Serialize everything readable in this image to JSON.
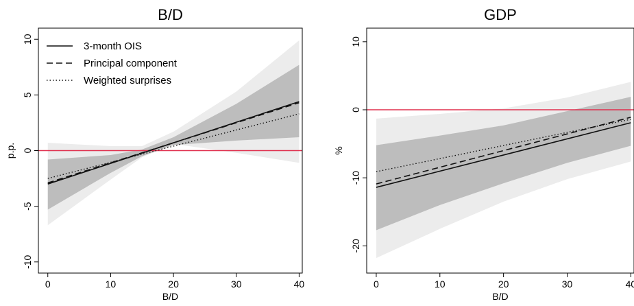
{
  "chart_data": [
    {
      "type": "line",
      "title": "B/D",
      "xlabel": "B/D",
      "ylabel": "p.p.",
      "xlim": [
        -1.5,
        40.5
      ],
      "ylim": [
        -11,
        11
      ],
      "xticks": [
        0,
        10,
        20,
        30,
        40
      ],
      "yticks": [
        -10,
        -5,
        0,
        5,
        10
      ],
      "ytick_labels": [
        "-10",
        "-5",
        "0",
        "5",
        "10"
      ],
      "reference_line": {
        "y": 0,
        "color": "#e0304e"
      },
      "band_colors": {
        "outer": "#ececec",
        "inner": "#bdbdbd"
      },
      "bands": {
        "outer": {
          "x": [
            0,
            10,
            15,
            20,
            30,
            40
          ],
          "lower": [
            -6.7,
            -2.6,
            -0.6,
            0.6,
            -0.2,
            -1.1
          ],
          "upper": [
            0.7,
            0.4,
            0.4,
            1.7,
            5.3,
            9.9
          ]
        },
        "inner": {
          "x": [
            0,
            10,
            15,
            20,
            30,
            40
          ],
          "lower": [
            -5.3,
            -2.0,
            -0.5,
            0.5,
            0.9,
            1.2
          ],
          "upper": [
            -0.8,
            -0.4,
            0.1,
            1.2,
            4.2,
            7.7
          ]
        }
      },
      "legend": {
        "position": "top-left",
        "entries": [
          "3-month OIS",
          "Principal component",
          "Weighted surprises"
        ]
      },
      "series": [
        {
          "name": "3-month OIS",
          "style": "solid",
          "x": [
            0,
            40
          ],
          "y": [
            -3.0,
            4.4
          ]
        },
        {
          "name": "Principal component",
          "style": "dashed",
          "x": [
            0,
            40
          ],
          "y": [
            -2.9,
            4.3
          ]
        },
        {
          "name": "Weighted surprises",
          "style": "dotted",
          "x": [
            0,
            40
          ],
          "y": [
            -2.5,
            3.3
          ]
        }
      ]
    },
    {
      "type": "line",
      "title": "GDP",
      "xlabel": "B/D",
      "ylabel": "%",
      "xlim": [
        -1.5,
        40.5
      ],
      "ylim": [
        -24,
        12
      ],
      "xticks": [
        0,
        10,
        20,
        30,
        40
      ],
      "yticks": [
        -20,
        -10,
        0,
        10
      ],
      "ytick_labels": [
        "-20",
        "-10",
        "0",
        "10"
      ],
      "reference_line": {
        "y": 0,
        "color": "#e0304e"
      },
      "band_colors": {
        "outer": "#ececec",
        "inner": "#bdbdbd"
      },
      "bands": {
        "outer": {
          "x": [
            0,
            10,
            20,
            30,
            40
          ],
          "lower": [
            -21.8,
            -17.5,
            -13.5,
            -10.2,
            -7.6
          ],
          "upper": [
            -1.3,
            -0.6,
            0.2,
            1.8,
            4.1
          ]
        },
        "inner": {
          "x": [
            0,
            10,
            20,
            30,
            40
          ],
          "lower": [
            -17.7,
            -14.0,
            -10.8,
            -7.8,
            -5.3
          ],
          "upper": [
            -5.2,
            -3.8,
            -2.3,
            -0.2,
            1.9
          ]
        }
      },
      "legend": null,
      "series": [
        {
          "name": "3-month OIS",
          "style": "solid",
          "x": [
            0,
            40
          ],
          "y": [
            -11.4,
            -1.9
          ]
        },
        {
          "name": "Principal component",
          "style": "dashed",
          "x": [
            0,
            40
          ],
          "y": [
            -10.9,
            -1.1
          ]
        },
        {
          "name": "Weighted surprises",
          "style": "dotted",
          "x": [
            0,
            40
          ],
          "y": [
            -9.1,
            -1.4
          ]
        }
      ]
    }
  ]
}
